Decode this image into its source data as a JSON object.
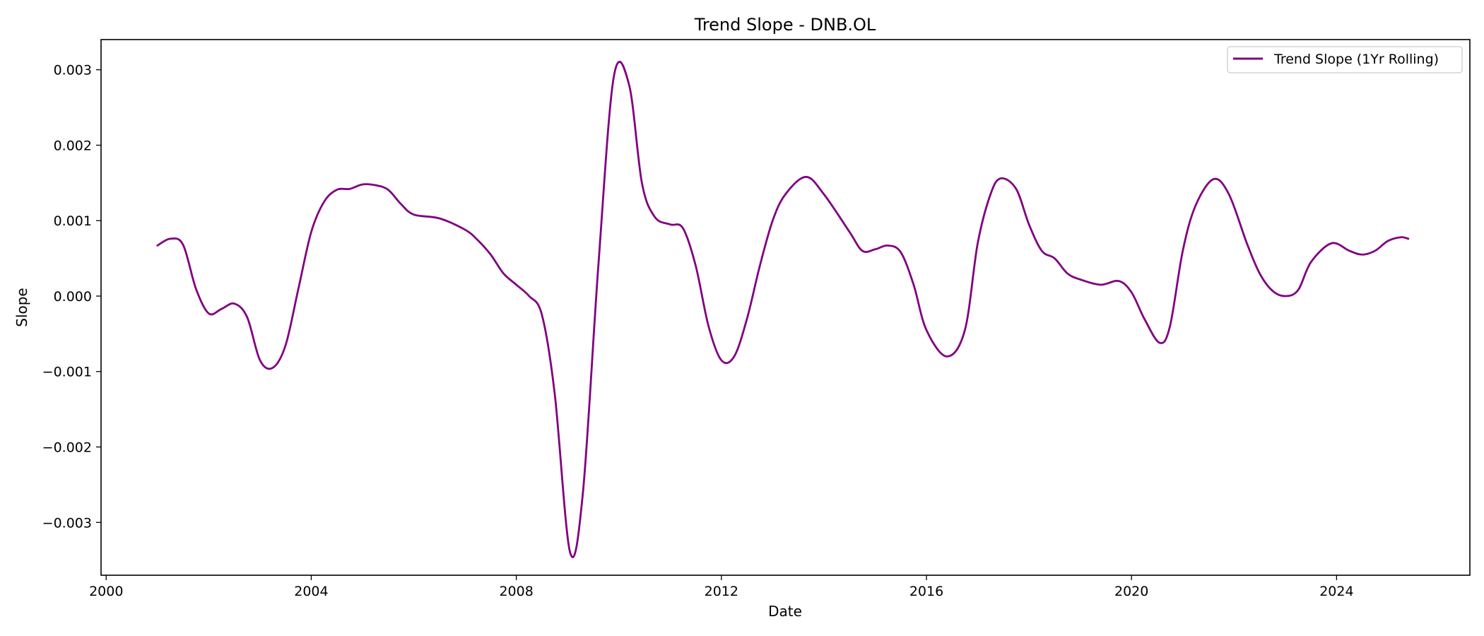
{
  "chart_data": {
    "type": "line",
    "title": "Trend Slope - DNB.OL",
    "xlabel": "Date",
    "ylabel": "Slope",
    "xlim": [
      1999.9,
      2026.6
    ],
    "ylim": [
      -0.0037,
      0.0034
    ],
    "x_ticks": [
      2000,
      2004,
      2008,
      2012,
      2016,
      2020,
      2024
    ],
    "x_tick_labels": [
      "2000",
      "2004",
      "2008",
      "2012",
      "2016",
      "2020",
      "2024"
    ],
    "y_ticks": [
      -0.003,
      -0.002,
      -0.001,
      0.0,
      0.001,
      0.002,
      0.003
    ],
    "y_tick_labels": [
      "−0.003",
      "−0.002",
      "−0.001",
      "0.000",
      "0.001",
      "0.002",
      "0.003"
    ],
    "grid": false,
    "legend_position": "top-right",
    "series": [
      {
        "name": "Trend Slope (1Yr Rolling)",
        "color": "#800080",
        "x": [
          2001.0,
          2001.25,
          2001.5,
          2001.75,
          2002.0,
          2002.25,
          2002.5,
          2002.75,
          2003.0,
          2003.25,
          2003.5,
          2003.75,
          2004.0,
          2004.25,
          2004.5,
          2004.75,
          2005.0,
          2005.25,
          2005.5,
          2005.75,
          2006.0,
          2006.5,
          2007.0,
          2007.25,
          2007.5,
          2007.75,
          2008.0,
          2008.25,
          2008.5,
          2008.75,
          2009.05,
          2009.3,
          2009.6,
          2009.9,
          2010.2,
          2010.45,
          2010.7,
          2011.0,
          2011.25,
          2011.5,
          2011.75,
          2012.0,
          2012.25,
          2012.5,
          2012.75,
          2013.0,
          2013.25,
          2013.65,
          2014.0,
          2014.5,
          2014.75,
          2015.0,
          2015.25,
          2015.5,
          2015.75,
          2016.0,
          2016.4,
          2016.75,
          2017.0,
          2017.25,
          2017.45,
          2017.75,
          2018.0,
          2018.25,
          2018.5,
          2018.75,
          2019.0,
          2019.4,
          2019.75,
          2020.0,
          2020.25,
          2020.55,
          2020.75,
          2021.0,
          2021.25,
          2021.6,
          2021.9,
          2022.25,
          2022.5,
          2022.75,
          2023.0,
          2023.25,
          2023.5,
          2023.9,
          2024.25,
          2024.5,
          2024.75,
          2025.0,
          2025.25,
          2025.4
        ],
        "y": [
          0.00067,
          0.00076,
          0.00068,
          0.0001,
          -0.00023,
          -0.00017,
          -0.0001,
          -0.00028,
          -0.00085,
          -0.00095,
          -0.00065,
          0.0001,
          0.00085,
          0.00125,
          0.00141,
          0.00142,
          0.00148,
          0.00147,
          0.00141,
          0.00122,
          0.00108,
          0.00103,
          0.00088,
          0.00074,
          0.00055,
          0.0003,
          0.00015,
          0.0,
          -0.00025,
          -0.0013,
          -0.0034,
          -0.0026,
          0.0004,
          0.0029,
          0.0028,
          0.0015,
          0.00105,
          0.00095,
          0.0009,
          0.0004,
          -0.0004,
          -0.00085,
          -0.0008,
          -0.0003,
          0.0004,
          0.001,
          0.00135,
          0.00158,
          0.00135,
          0.00085,
          0.0006,
          0.00062,
          0.00067,
          0.00058,
          0.00015,
          -0.00045,
          -0.0008,
          -0.00045,
          0.0007,
          0.00135,
          0.00156,
          0.00142,
          0.00095,
          0.0006,
          0.0005,
          0.0003,
          0.00022,
          0.00015,
          0.0002,
          5e-05,
          -0.0003,
          -0.00062,
          -0.0004,
          0.0006,
          0.0012,
          0.00155,
          0.00135,
          0.0007,
          0.0003,
          7e-05,
          0.0,
          8e-05,
          0.00045,
          0.0007,
          0.0006,
          0.00055,
          0.0006,
          0.00073,
          0.00078,
          0.00076
        ]
      }
    ]
  }
}
